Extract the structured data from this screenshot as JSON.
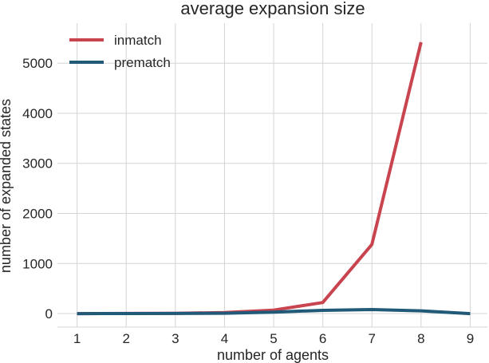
{
  "chart_data": {
    "type": "line",
    "title": "average expansion size",
    "xlabel": "number of agents",
    "ylabel": "number of expanded states",
    "x": [
      1,
      2,
      3,
      4,
      5,
      6,
      7,
      8,
      9
    ],
    "xticks": [
      "1",
      "2",
      "3",
      "4",
      "5",
      "6",
      "7",
      "8",
      "9"
    ],
    "yticks": [
      0,
      1000,
      2000,
      3000,
      4000,
      5000
    ],
    "ytick_labels": [
      "0",
      "1000",
      "2000",
      "3000",
      "4000",
      "5000"
    ],
    "xlim": [
      0.6,
      9.35
    ],
    "ylim": [
      -270,
      5800
    ],
    "grid": true,
    "legend": "top-left",
    "series": [
      {
        "name": "inmatch",
        "color": "#c8444f",
        "x": [
          1,
          2,
          3,
          4,
          5,
          6,
          7,
          8
        ],
        "values": [
          0,
          2,
          6,
          20,
          70,
          220,
          1380,
          5420
        ]
      },
      {
        "name": "prematch",
        "color": "#215a78",
        "x": [
          1,
          2,
          3,
          4,
          5,
          6,
          7,
          8,
          9
        ],
        "values": [
          0,
          1,
          3,
          8,
          30,
          65,
          80,
          55,
          0
        ]
      }
    ]
  }
}
